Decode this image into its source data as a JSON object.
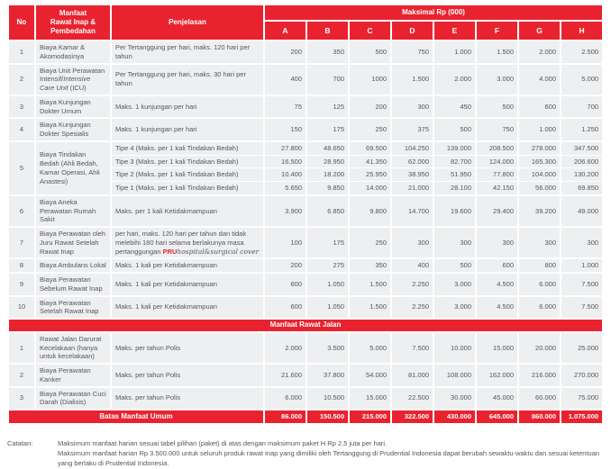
{
  "colors": {
    "red": "#e8232f",
    "cell_bg": "#edeff1",
    "text": "#54565b"
  },
  "header": {
    "no": "No",
    "manfaat_lines": [
      "Manfaat",
      "Rawat Inap &",
      "Pembedahan"
    ],
    "penjelasan": "Penjelasan",
    "maksimal": "Maksimal Rp (000)",
    "packages": [
      "A",
      "B",
      "C",
      "D",
      "E",
      "F",
      "G",
      "H"
    ]
  },
  "sections": [
    {
      "title": null,
      "rows": [
        {
          "no": "1",
          "manfaat": "Biaya Kamar & Akomodasinya",
          "penjelasan": "Per Tertanggung per hari, maks. 120 hari per tahun",
          "values": [
            "200",
            "350",
            "500",
            "750",
            "1.000",
            "1.500",
            "2.000",
            "2.500"
          ]
        },
        {
          "no": "2",
          "manfaat": [
            {
              "t": "Biaya Unit Perawatan Intensif/"
            },
            {
              "t": "Intensive Care Unit",
              "style": "italic"
            },
            {
              "t": " (ICU)"
            }
          ],
          "penjelasan": "Per Tertanggung per hari, maks. 30 hari per tahun",
          "values": [
            "400",
            "700",
            "1000",
            "1.500",
            "2.000",
            "3.000",
            "4.000",
            "5.000"
          ]
        },
        {
          "no": "3",
          "manfaat": "Biaya Kunjungan Dokter Umum",
          "penjelasan": "Maks. 1 kunjungan per hari",
          "values": [
            "75",
            "125",
            "200",
            "300",
            "450",
            "500",
            "600",
            "700"
          ]
        },
        {
          "no": "4",
          "manfaat": "Biaya Kunjungan Dokter Spesialis",
          "penjelasan": "Maks. 1 kunjungan per hari",
          "values": [
            "150",
            "175",
            "250",
            "375",
            "500",
            "750",
            "1.000",
            "1.250"
          ]
        },
        {
          "no": "5",
          "manfaat": "Biaya Tindakan Bedah (Ahli Bedah, Kamar Operasi, Ahli Anastesi)",
          "sub": [
            {
              "penjelasan": "Tipe 4 (Maks. per 1 kali Tindakan Bedah)",
              "values": [
                "27.800",
                "48.650",
                "69.500",
                "104.250",
                "139.000",
                "208.500",
                "278.000",
                "347.500"
              ]
            },
            {
              "penjelasan": "Tipe 3 (Maks. per 1 kali Tindakan Bedah)",
              "values": [
                "16.500",
                "28.950",
                "41.350",
                "62.000",
                "82.700",
                "124.000",
                "165.300",
                "206.600"
              ]
            },
            {
              "penjelasan": "Tipe 2 (Maks. per 1 kali Tindakan Bedah)",
              "values": [
                "10.400",
                "18.200",
                "25.950",
                "38.950",
                "51.950",
                "77.800",
                "104.000",
                "130.200"
              ]
            },
            {
              "penjelasan": "Tipe 1 (Maks. per 1 kali Tindakan Bedah)",
              "values": [
                "5.650",
                "9.850",
                "14.000",
                "21.000",
                "28.100",
                "42.150",
                "56.000",
                "69.850"
              ]
            }
          ]
        },
        {
          "no": "6",
          "manfaat": "Biaya Aneka Perawatan Rumah Sakit",
          "penjelasan": "Maks. per 1 kali Ketidakmampuan",
          "values": [
            "3.900",
            "6.850",
            "9.800",
            "14.700",
            "19.600",
            "29.400",
            "39.200",
            "49.000"
          ]
        },
        {
          "no": "7",
          "manfaat": "Biaya Perawatan oleh Juru Rawat Setelah Rawat Inap",
          "penjelasan": [
            {
              "t": "per hari, maks. 120 hari per tahun dan tidak melebihi 180 hari selama berlakunya masa pertanggungan "
            },
            {
              "t": "PRU",
              "style": "pru"
            },
            {
              "t": "hospital&surgical cover",
              "style": "script"
            }
          ],
          "values": [
            "100",
            "175",
            "250",
            "300",
            "300",
            "300",
            "300",
            "300"
          ]
        },
        {
          "no": "8",
          "manfaat": "Biaya Ambulans Lokal",
          "penjelasan": "Maks. 1 kali per Ketidakmampuan",
          "values": [
            "200",
            "275",
            "350",
            "400",
            "500",
            "600",
            "800",
            "1.000"
          ]
        },
        {
          "no": "9",
          "manfaat": "Biaya Perawatan Sebelum Rawat Inap",
          "penjelasan": "Maks. 1 kali per Ketidakmampuan",
          "values": [
            "600",
            "1.050",
            "1.500",
            "2.250",
            "3.000",
            "4.500",
            "6.000",
            "7.500"
          ]
        },
        {
          "no": "10",
          "manfaat": "Biaya Perawatan Setelah Rawat Inap",
          "penjelasan": "Maks. 1 kali per Ketidakmampuan",
          "values": [
            "600",
            "1.050",
            "1.500",
            "2.250",
            "3.000",
            "4.500",
            "6.000",
            "7.500"
          ]
        }
      ]
    },
    {
      "title": "Manfaat Rawat Jalan",
      "rows": [
        {
          "no": "1",
          "manfaat": "Rawat Jalan Darurat Kecelakaan (hanya untuk kecelakaan)",
          "penjelasan": "Maks. per tahun Polis",
          "values": [
            "2.000",
            "3.500",
            "5.000",
            "7.500",
            "10.000",
            "15.000",
            "20.000",
            "25.000"
          ]
        },
        {
          "no": "2",
          "manfaat": "Biaya Perawatan Kanker",
          "penjelasan": "Maks. per tahun Polis",
          "values": [
            "21.600",
            "37.800",
            "54.000",
            "81.000",
            "108.000",
            "162.000",
            "216.000",
            "270.000"
          ]
        },
        {
          "no": "3",
          "manfaat": "Biaya Perawatan Cuci Darah (Dialisis)",
          "penjelasan": "Maks. per tahun Polis",
          "values": [
            "6.000",
            "10.500",
            "15.000",
            "22.500",
            "30.000",
            "45.000",
            "60.000",
            "75.000"
          ]
        }
      ]
    }
  ],
  "footer": {
    "label": "Batas Manfaat Umum",
    "values": [
      "86.000",
      "150.500",
      "215.000",
      "322.500",
      "430.000",
      "645.000",
      "860.000",
      "1.075.000"
    ]
  },
  "notes": {
    "label": "Catatan:",
    "lines": [
      "Maksimum manfaat harian sesuai tabel pilihan (paket) di atas dengan maksimum paket H Rp 2,5 juta per hari.",
      "Maksimum manfaat harian Rp 3.500.000 untuk seluruh produk rawat inap yang dimiliki oleh Tertanggung di Prudential Indonesia dapat berubah sewaktu-waktu dan sesuai ketentuan yang berlaku di Prudential Indonesia."
    ]
  }
}
